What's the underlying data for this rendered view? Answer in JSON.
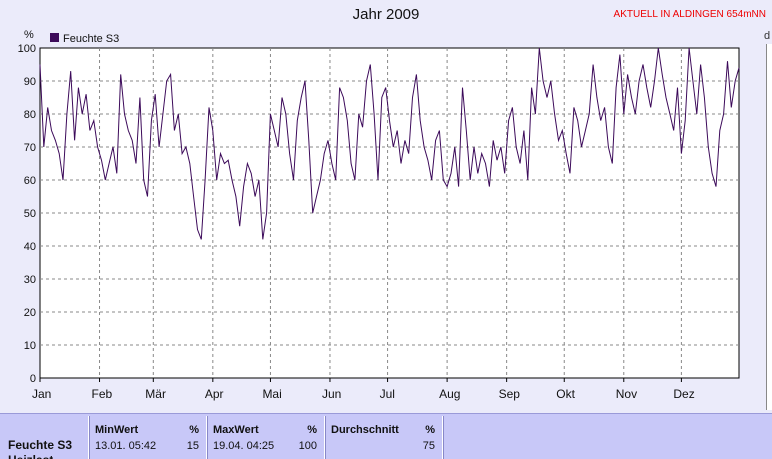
{
  "title": "Jahr 2009",
  "station": "AKTUELL IN ALDINGEN 654mNN",
  "right_edge_label": "d",
  "chart_data": {
    "type": "line",
    "title": "Jahr 2009",
    "ylabel": "%",
    "ylim": [
      0,
      100
    ],
    "yticks": [
      0,
      10,
      20,
      30,
      40,
      50,
      60,
      70,
      80,
      90,
      100
    ],
    "grid": true,
    "legend_position": "top-left",
    "x_categories": [
      "Jan",
      "Feb",
      "Mär",
      "Apr",
      "Mai",
      "Jun",
      "Jul",
      "Aug",
      "Sep",
      "Okt",
      "Nov",
      "Dez"
    ],
    "series": [
      {
        "name": "Feuchte S3",
        "color": "#3c0a5a",
        "x_unit": "day of year",
        "points": [
          [
            1,
            95
          ],
          [
            3,
            70
          ],
          [
            5,
            82
          ],
          [
            7,
            75
          ],
          [
            9,
            72
          ],
          [
            11,
            68
          ],
          [
            13,
            60
          ],
          [
            15,
            80
          ],
          [
            17,
            93
          ],
          [
            19,
            72
          ],
          [
            21,
            88
          ],
          [
            23,
            80
          ],
          [
            25,
            86
          ],
          [
            27,
            75
          ],
          [
            29,
            78
          ],
          [
            31,
            70
          ],
          [
            33,
            66
          ],
          [
            35,
            60
          ],
          [
            37,
            65
          ],
          [
            39,
            70
          ],
          [
            41,
            62
          ],
          [
            43,
            92
          ],
          [
            45,
            80
          ],
          [
            47,
            75
          ],
          [
            49,
            72
          ],
          [
            51,
            65
          ],
          [
            53,
            85
          ],
          [
            55,
            60
          ],
          [
            57,
            55
          ],
          [
            59,
            78
          ],
          [
            61,
            86
          ],
          [
            63,
            70
          ],
          [
            65,
            80
          ],
          [
            67,
            90
          ],
          [
            69,
            92
          ],
          [
            71,
            75
          ],
          [
            73,
            80
          ],
          [
            75,
            68
          ],
          [
            77,
            70
          ],
          [
            79,
            65
          ],
          [
            81,
            55
          ],
          [
            83,
            45
          ],
          [
            85,
            42
          ],
          [
            87,
            60
          ],
          [
            89,
            82
          ],
          [
            91,
            75
          ],
          [
            93,
            60
          ],
          [
            95,
            68
          ],
          [
            97,
            65
          ],
          [
            99,
            66
          ],
          [
            101,
            60
          ],
          [
            103,
            55
          ],
          [
            105,
            46
          ],
          [
            107,
            58
          ],
          [
            109,
            65
          ],
          [
            111,
            62
          ],
          [
            113,
            55
          ],
          [
            115,
            60
          ],
          [
            117,
            42
          ],
          [
            119,
            50
          ],
          [
            121,
            80
          ],
          [
            123,
            75
          ],
          [
            125,
            70
          ],
          [
            127,
            85
          ],
          [
            129,
            80
          ],
          [
            131,
            68
          ],
          [
            133,
            60
          ],
          [
            135,
            78
          ],
          [
            137,
            85
          ],
          [
            139,
            90
          ],
          [
            141,
            72
          ],
          [
            143,
            50
          ],
          [
            145,
            55
          ],
          [
            147,
            60
          ],
          [
            149,
            68
          ],
          [
            151,
            72
          ],
          [
            153,
            65
          ],
          [
            155,
            60
          ],
          [
            157,
            88
          ],
          [
            159,
            85
          ],
          [
            161,
            78
          ],
          [
            163,
            65
          ],
          [
            165,
            60
          ],
          [
            167,
            80
          ],
          [
            169,
            76
          ],
          [
            171,
            90
          ],
          [
            173,
            95
          ],
          [
            175,
            80
          ],
          [
            177,
            60
          ],
          [
            179,
            85
          ],
          [
            181,
            88
          ],
          [
            183,
            78
          ],
          [
            185,
            70
          ],
          [
            187,
            75
          ],
          [
            189,
            65
          ],
          [
            191,
            72
          ],
          [
            193,
            68
          ],
          [
            195,
            85
          ],
          [
            197,
            92
          ],
          [
            199,
            78
          ],
          [
            201,
            70
          ],
          [
            203,
            66
          ],
          [
            205,
            60
          ],
          [
            207,
            72
          ],
          [
            209,
            75
          ],
          [
            211,
            60
          ],
          [
            213,
            58
          ],
          [
            215,
            62
          ],
          [
            217,
            70
          ],
          [
            219,
            58
          ],
          [
            221,
            88
          ],
          [
            223,
            75
          ],
          [
            225,
            60
          ],
          [
            227,
            70
          ],
          [
            229,
            62
          ],
          [
            231,
            68
          ],
          [
            233,
            65
          ],
          [
            235,
            58
          ],
          [
            237,
            72
          ],
          [
            239,
            66
          ],
          [
            241,
            70
          ],
          [
            243,
            62
          ],
          [
            245,
            78
          ],
          [
            247,
            82
          ],
          [
            249,
            70
          ],
          [
            251,
            65
          ],
          [
            253,
            75
          ],
          [
            255,
            60
          ],
          [
            257,
            88
          ],
          [
            259,
            80
          ],
          [
            261,
            100
          ],
          [
            263,
            90
          ],
          [
            265,
            85
          ],
          [
            267,
            90
          ],
          [
            269,
            80
          ],
          [
            271,
            72
          ],
          [
            273,
            75
          ],
          [
            275,
            68
          ],
          [
            277,
            62
          ],
          [
            279,
            82
          ],
          [
            281,
            78
          ],
          [
            283,
            70
          ],
          [
            285,
            75
          ],
          [
            287,
            80
          ],
          [
            289,
            95
          ],
          [
            291,
            85
          ],
          [
            293,
            78
          ],
          [
            295,
            82
          ],
          [
            297,
            70
          ],
          [
            299,
            65
          ],
          [
            301,
            88
          ],
          [
            303,
            98
          ],
          [
            305,
            80
          ],
          [
            307,
            92
          ],
          [
            309,
            85
          ],
          [
            311,
            80
          ],
          [
            313,
            90
          ],
          [
            315,
            95
          ],
          [
            317,
            88
          ],
          [
            319,
            82
          ],
          [
            321,
            90
          ],
          [
            323,
            100
          ],
          [
            325,
            92
          ],
          [
            327,
            85
          ],
          [
            329,
            80
          ],
          [
            331,
            75
          ],
          [
            333,
            88
          ],
          [
            335,
            68
          ],
          [
            337,
            78
          ],
          [
            339,
            100
          ],
          [
            341,
            90
          ],
          [
            343,
            80
          ],
          [
            345,
            95
          ],
          [
            347,
            85
          ],
          [
            349,
            70
          ],
          [
            351,
            62
          ],
          [
            353,
            58
          ],
          [
            355,
            75
          ],
          [
            357,
            80
          ],
          [
            359,
            96
          ],
          [
            361,
            82
          ],
          [
            363,
            90
          ],
          [
            365,
            94
          ]
        ]
      }
    ]
  },
  "stats": {
    "row_label": "Feuchte S3",
    "row_sub": "Heizlast",
    "min": {
      "header": "MinWert",
      "unit": "%",
      "time": "13.01. 05:42",
      "value": "15"
    },
    "max": {
      "header": "MaxWert",
      "unit": "%",
      "time": "19.04. 04:25",
      "value": "100"
    },
    "avg": {
      "header": "Durchschnitt",
      "unit": "%",
      "value": "75"
    }
  }
}
